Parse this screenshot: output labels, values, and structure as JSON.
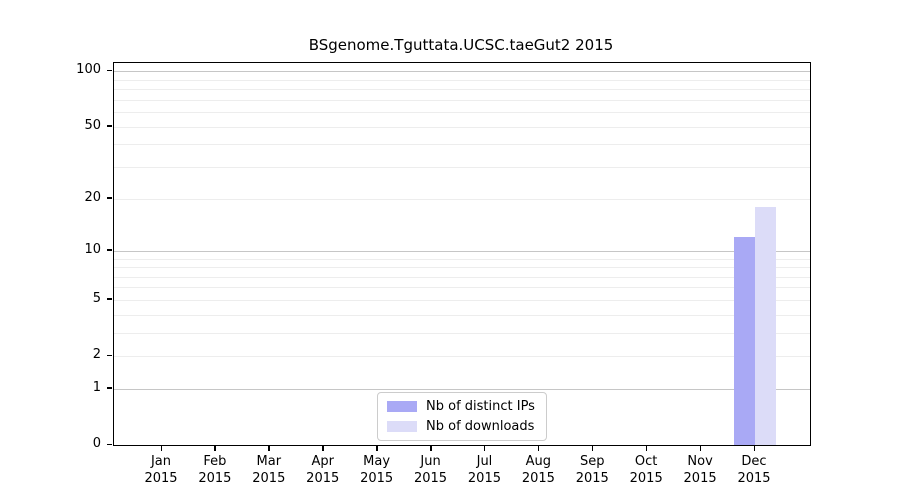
{
  "chart_data": {
    "type": "bar",
    "title": "BSgenome.Tguttata.UCSC.taeGut2 2015",
    "categories": [
      "Jan",
      "Feb",
      "Mar",
      "Apr",
      "May",
      "Jun",
      "Jul",
      "Aug",
      "Sep",
      "Oct",
      "Nov",
      "Dec"
    ],
    "year_label": "2015",
    "series": [
      {
        "name": "Nb of distinct IPs",
        "color": "#a9a9f5",
        "values": [
          0,
          0,
          0,
          0,
          0,
          0,
          0,
          0,
          0,
          0,
          0,
          12
        ]
      },
      {
        "name": "Nb of downloads",
        "color": "#dcdcf8",
        "values": [
          0,
          0,
          0,
          0,
          0,
          0,
          0,
          0,
          0,
          0,
          0,
          18
        ]
      }
    ],
    "xlabel": "",
    "ylabel": "",
    "yscale": "log1p",
    "ylim": [
      0,
      111
    ],
    "yticks": [
      0,
      1,
      2,
      5,
      10,
      20,
      50,
      100
    ],
    "grid": {
      "major_values": [
        1,
        10,
        100
      ],
      "minor_values": [
        2,
        3,
        4,
        5,
        6,
        7,
        8,
        9,
        20,
        30,
        40,
        50,
        60,
        70,
        80,
        90
      ]
    },
    "legend_position": "bottom-center-inside"
  },
  "colors": {
    "background": "#ffffff",
    "axis": "#000000",
    "grid_major": "#c6c6c6",
    "grid_minor": "#ededed",
    "legend_border": "#cccccc",
    "bar_distinct_ips": "#a9a9f5",
    "bar_downloads": "#dcdcf8"
  }
}
